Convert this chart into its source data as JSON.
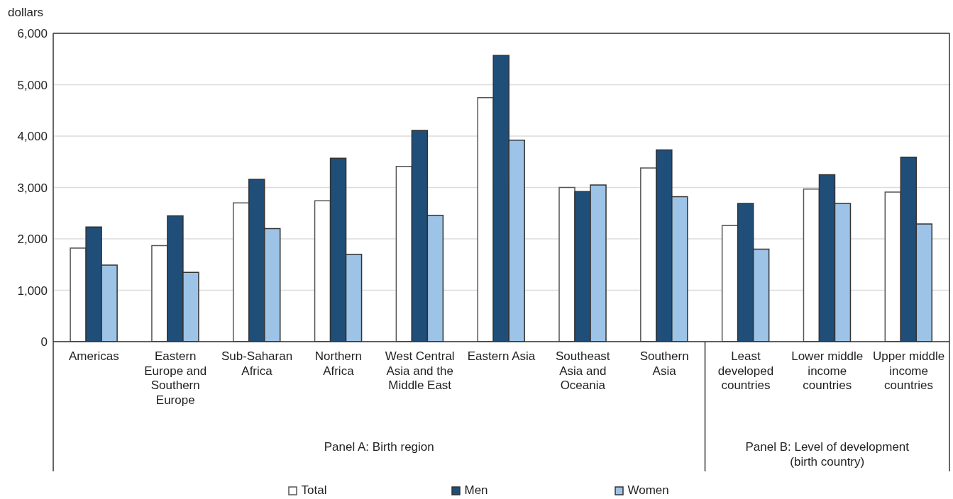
{
  "chart_data": {
    "type": "bar",
    "ylabel": "dollars",
    "categories": [
      "Americas",
      "Eastern Europe and Southern Europe",
      "Sub-Saharan Africa",
      "Northern Africa",
      "West Central Asia and the Middle East",
      "Eastern Asia",
      "Southeast Asia and Oceania",
      "Southern Asia",
      "Least developed countries",
      "Lower middle income countries",
      "Upper middle income countries"
    ],
    "series": [
      {
        "name": "Total",
        "color": "#ffffff",
        "values": [
          1820,
          1870,
          2700,
          2740,
          3410,
          4750,
          3000,
          3380,
          2260,
          2970,
          2910
        ]
      },
      {
        "name": "Men",
        "color": "#1f4e79",
        "values": [
          2230,
          2450,
          3160,
          3570,
          4110,
          5570,
          2920,
          3730,
          2690,
          3250,
          3590
        ]
      },
      {
        "name": "Women",
        "color": "#9dc3e6",
        "values": [
          1490,
          1350,
          2200,
          1700,
          2460,
          3920,
          3050,
          2820,
          1800,
          2690,
          2290
        ]
      }
    ],
    "ylim": [
      0,
      6000
    ],
    "yticks": [
      {
        "value": 0,
        "label": "0"
      },
      {
        "value": 1000,
        "label": "1,000"
      },
      {
        "value": 2000,
        "label": "2,000"
      },
      {
        "value": 3000,
        "label": "3,000"
      },
      {
        "value": 4000,
        "label": "4,000"
      },
      {
        "value": 5000,
        "label": "5,000"
      },
      {
        "value": 6000,
        "label": "6,000"
      }
    ],
    "grid": "y",
    "legend": "bottom",
    "annotations": [
      "Panel A: Birth region",
      "Panel B: Level of development (birth country)"
    ]
  }
}
